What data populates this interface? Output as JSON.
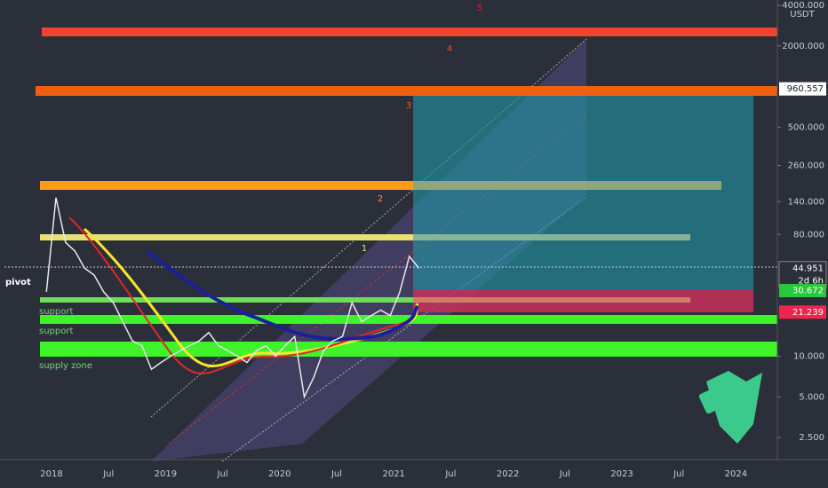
{
  "price_axis": {
    "unit": "USDT",
    "ticks": [
      {
        "value": 4000,
        "label": "4000.000"
      },
      {
        "value": 2000,
        "label": "2000.000"
      },
      {
        "value": 500,
        "label": "500.000"
      },
      {
        "value": 260,
        "label": "260.000"
      },
      {
        "value": 140,
        "label": "140.000"
      },
      {
        "value": 80,
        "label": "80.000"
      },
      {
        "value": 10,
        "label": "10.000"
      },
      {
        "value": 5,
        "label": "5.000"
      },
      {
        "value": 2.5,
        "label": "2.500"
      }
    ]
  },
  "time_axis": {
    "labels": [
      "2018",
      "Jul",
      "2019",
      "Jul",
      "2020",
      "Jul",
      "2021",
      "Jul",
      "2022",
      "Jul",
      "2023",
      "Jul",
      "2024"
    ]
  },
  "badges": [
    {
      "value": 960.557,
      "label": "960.557",
      "color": "#ffffff",
      "text_color": "#131722"
    },
    {
      "value": 44.951,
      "label": "44.951",
      "color": "#2b2f3a",
      "text_color": "#ffffff",
      "sub": "2d 6h"
    },
    {
      "value": 30.672,
      "label": "30.672",
      "color": "#26c93a",
      "text_color": "#ffffff"
    },
    {
      "value": 21.239,
      "label": "21.239",
      "color": "#f0244c",
      "text_color": "#ffffff"
    }
  ],
  "annotations": {
    "waves": [
      "5",
      "4",
      "3",
      "2",
      "1"
    ],
    "pivot": "pivot",
    "zones": [
      "support",
      "support",
      "supply zone"
    ]
  },
  "price_trace": {
    "color": "#e8e8e8",
    "values": [
      30,
      150,
      70,
      60,
      45,
      40,
      30,
      25,
      18,
      13,
      12,
      8,
      9,
      10,
      11,
      12,
      13,
      15,
      12,
      11,
      10,
      9,
      11,
      12,
      10,
      12,
      14,
      5,
      7,
      11,
      13,
      14,
      25,
      18,
      20,
      22,
      20,
      30,
      55,
      45
    ]
  }
}
